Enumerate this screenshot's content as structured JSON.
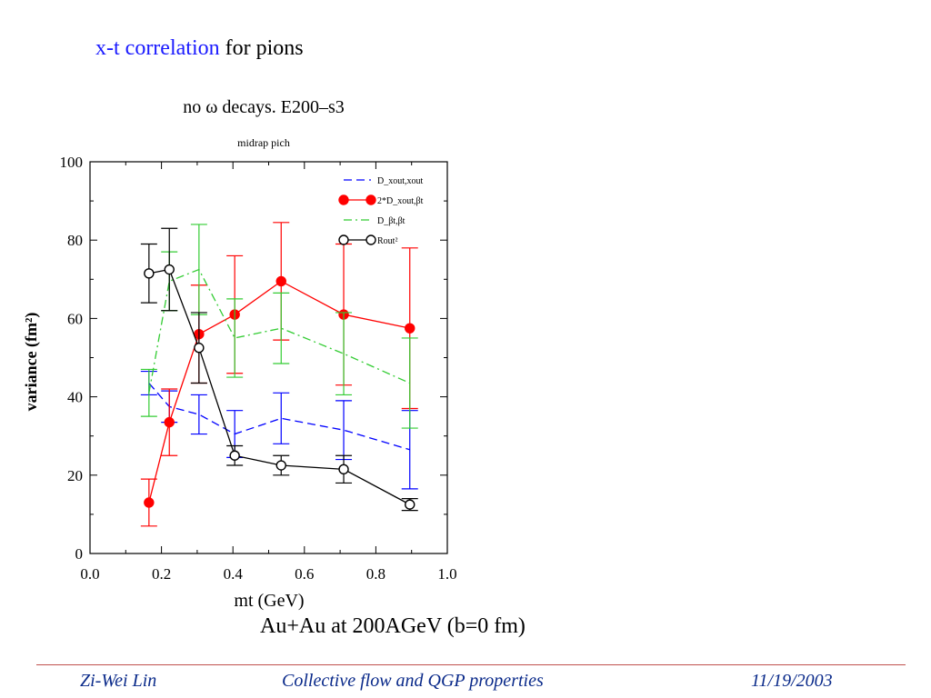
{
  "slide": {
    "title_highlight": "x-t correlation",
    "title_rest": " for pions",
    "caption": "Au+Au at 200AGeV (b=0 fm)"
  },
  "footer": {
    "author": "Zi-Wei Lin",
    "talk": "Collective flow and QGP properties",
    "date": "11/19/2003"
  },
  "chart_data": {
    "type": "line",
    "title": "no ω decays. E200–s3",
    "subtitle": "midrap pich",
    "xlabel": "mt (GeV)",
    "ylabel": "variance (fm²)",
    "xlim": [
      0,
      1.0
    ],
    "ylim": [
      0,
      100
    ],
    "xticks": [
      "0.0",
      "0.2",
      "0.4",
      "0.6",
      "0.8",
      "1.0"
    ],
    "yticks": [
      "0",
      "20",
      "40",
      "60",
      "80",
      "100"
    ],
    "legend_position": "top-right",
    "series": [
      {
        "name": "D_xout,xout",
        "color": "#0000ff",
        "style": "dashed",
        "marker": "none",
        "x": [
          0.165,
          0.222,
          0.305,
          0.405,
          0.535,
          0.71,
          0.895
        ],
        "y": [
          43.5,
          37.5,
          35.5,
          30.5,
          34.5,
          31.5,
          26.5
        ],
        "err": [
          3,
          4,
          5,
          6,
          6.5,
          7.5,
          10
        ]
      },
      {
        "name": "2*D_xout,βt",
        "color": "#ff0000",
        "style": "solid",
        "marker": "filled",
        "x": [
          0.165,
          0.222,
          0.305,
          0.405,
          0.535,
          0.71,
          0.895
        ],
        "y": [
          13,
          33.5,
          56,
          61,
          69.5,
          61,
          57.5
        ],
        "err": [
          6,
          8.5,
          12.5,
          15,
          15,
          18,
          20.5
        ]
      },
      {
        "name": "D_βt,βt",
        "color": "#33cc33",
        "style": "dashdot",
        "marker": "none",
        "x": [
          0.165,
          0.222,
          0.305,
          0.405,
          0.535,
          0.71,
          0.895
        ],
        "y": [
          41,
          69.5,
          72.5,
          55,
          57.5,
          51,
          43.5
        ],
        "err": [
          6,
          7.5,
          11.5,
          10,
          9,
          10.5,
          11.5
        ]
      },
      {
        "name": "Rout²",
        "color": "#000000",
        "style": "solid",
        "marker": "open",
        "x": [
          0.165,
          0.222,
          0.305,
          0.405,
          0.535,
          0.71,
          0.895
        ],
        "y": [
          71.5,
          72.5,
          52.5,
          25,
          22.5,
          21.5,
          12.5
        ],
        "err": [
          7.5,
          10.5,
          9,
          2.5,
          2.5,
          3.5,
          1.5
        ]
      }
    ]
  }
}
